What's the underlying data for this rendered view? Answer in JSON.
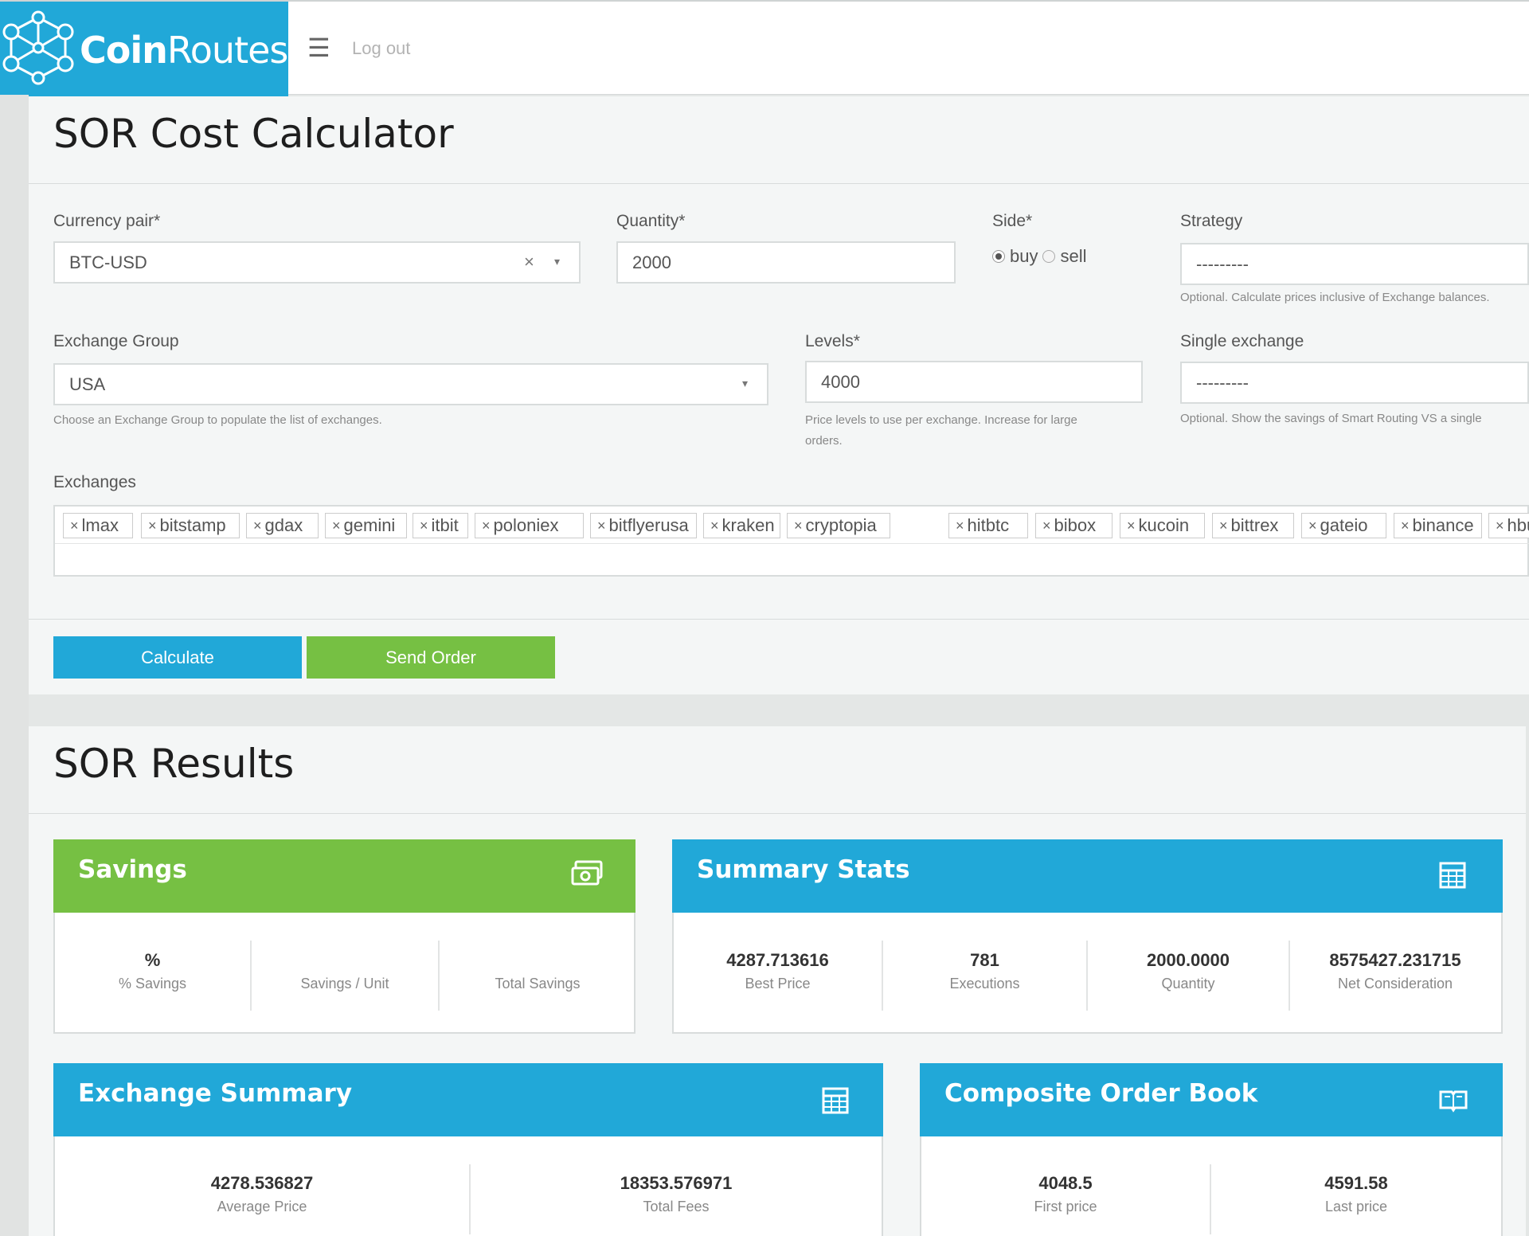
{
  "brand": {
    "name_bold": "Coin",
    "name_light": "Routes"
  },
  "nav": {
    "menu_icon": "menu-icon",
    "logout_label": "Log out"
  },
  "calculator": {
    "title": "SOR Cost Calculator",
    "currency_pair": {
      "label": "Currency pair*",
      "value": "BTC-USD",
      "clear": "×"
    },
    "quantity": {
      "label": "Quantity*",
      "value": "2000"
    },
    "side": {
      "label": "Side*",
      "buy_label": "buy",
      "sell_label": "sell",
      "selected": "buy"
    },
    "strategy": {
      "label": "Strategy",
      "value": "---------",
      "help": "Optional. Calculate prices inclusive of Exchange balances."
    },
    "exchange_group": {
      "label": "Exchange Group",
      "value": "USA",
      "help": "Choose an Exchange Group to populate the list of exchanges."
    },
    "levels": {
      "label": "Levels*",
      "value": "4000",
      "help_line1": "Price levels to use per exchange. Increase for large",
      "help_line2": "orders."
    },
    "single_exchange": {
      "label": "Single exchange",
      "value": "---------",
      "help": "Optional. Show the savings of Smart Routing VS a single"
    },
    "exchanges": {
      "label": "Exchanges",
      "items": [
        "lmax",
        "bitstamp",
        "gdax",
        "gemini",
        "itbit",
        "poloniex",
        "bitflyerusa",
        "kraken",
        "cryptopia",
        "hitbtc",
        "bibox",
        "kucoin",
        "bittrex",
        "gateio",
        "binance",
        "hbus"
      ]
    },
    "calculate_label": "Calculate",
    "send_order_label": "Send Order"
  },
  "results": {
    "title": "SOR Results",
    "savings": {
      "title": "Savings",
      "pct_value": "%",
      "pct_label": "% Savings",
      "unit_value": "",
      "unit_label": "Savings / Unit",
      "total_value": "",
      "total_label": "Total Savings"
    },
    "summary": {
      "title": "Summary Stats",
      "best_price": "4287.713616",
      "best_price_label": "Best Price",
      "executions": "781",
      "executions_label": "Executions",
      "quantity": "2000.0000",
      "quantity_label": "Quantity",
      "net_consideration": "8575427.231715",
      "net_consideration_label": "Net Consideration"
    },
    "exchange_summary": {
      "title": "Exchange Summary",
      "avg_price": "4278.536827",
      "avg_price_label": "Average Price",
      "total_fees": "18353.576971",
      "total_fees_label": "Total Fees"
    },
    "order_book": {
      "title": "Composite Order Book",
      "first_price": "4048.5",
      "first_price_label": "First price",
      "last_price": "4591.58",
      "last_price_label": "Last price"
    }
  },
  "colors": {
    "brand_blue": "#21a8d8",
    "brand_green": "#76c043"
  }
}
